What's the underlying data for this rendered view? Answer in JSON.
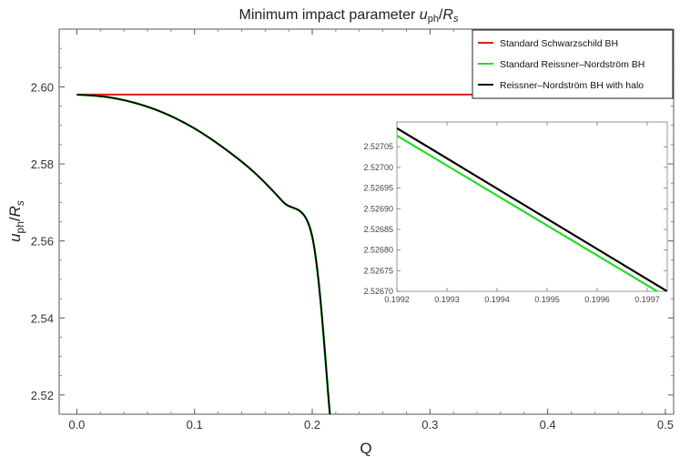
{
  "chart_data": [
    {
      "type": "line",
      "title_prefix": "Minimum impact parameter ",
      "title_math": {
        "main": "u",
        "sub": "ph",
        "slash": "/",
        "r": "R",
        "r_sub": "s"
      },
      "xlabel": "Q",
      "ylabel": {
        "main": "u",
        "sub": "ph",
        "slash": "/",
        "r": "R",
        "r_sub": "s"
      },
      "xlim": [
        -0.015,
        0.507
      ],
      "ylim": [
        2.515,
        2.615
      ],
      "x_ticks": [
        0.0,
        0.1,
        0.2,
        0.3,
        0.4,
        0.5
      ],
      "x_tick_labels": [
        "0.0",
        "0.1",
        "0.2",
        "0.3",
        "0.4",
        "0.5"
      ],
      "y_ticks": [
        2.52,
        2.54,
        2.56,
        2.58,
        2.6
      ],
      "y_tick_labels": [
        "2.52",
        "2.54",
        "2.56",
        "2.58",
        "2.60"
      ],
      "grid": false,
      "legend_position": "top-right",
      "series": [
        {
          "name": "Standard Schwarzschild BH",
          "color": "#e41a1c",
          "x": [
            0.0,
            0.5
          ],
          "y": [
            2.598,
            2.598
          ]
        },
        {
          "name": "Standard Reissner–Nordström BH",
          "color": "#22dd22",
          "x": [
            0.0,
            0.025,
            0.05,
            0.075,
            0.1,
            0.125,
            0.15,
            0.175,
            0.2,
            0.215
          ],
          "y": [
            2.598,
            2.5974,
            2.5958,
            2.5931,
            2.5892,
            2.5841,
            2.578,
            2.5702,
            2.5611,
            2.515
          ]
        },
        {
          "name": "Reissner–Nordström BH with halo",
          "color": "#000000",
          "x": [
            0.0,
            0.025,
            0.05,
            0.075,
            0.1,
            0.125,
            0.15,
            0.175,
            0.2,
            0.215
          ],
          "y": [
            2.598,
            2.5974,
            2.5958,
            2.5931,
            2.5892,
            2.5841,
            2.578,
            2.5702,
            2.5611,
            2.515
          ]
        }
      ]
    },
    {
      "type": "line",
      "xlim": [
        0.1992,
        0.19974
      ],
      "ylim": [
        2.5267,
        2.52711
      ],
      "x_ticks": [
        0.1992,
        0.1993,
        0.1994,
        0.1995,
        0.1996,
        0.1997
      ],
      "x_tick_labels": [
        "0.1992",
        "0.1993",
        "0.1994",
        "0.1995",
        "0.1996",
        "0.1997"
      ],
      "y_ticks": [
        2.5267,
        2.52675,
        2.5268,
        2.52685,
        2.5269,
        2.52695,
        2.527,
        2.52705
      ],
      "y_tick_labels": [
        "2.52670",
        "2.52675",
        "2.52680",
        "2.52685",
        "2.52690",
        "2.52695",
        "2.52700",
        "2.52705"
      ],
      "grid": false,
      "series": [
        {
          "color": "#22dd22",
          "x": [
            0.1992,
            0.19972
          ],
          "y": [
            2.527077,
            2.5267
          ]
        },
        {
          "color": "#000000",
          "x": [
            0.1992,
            0.19974
          ],
          "y": [
            2.527095,
            2.5267
          ]
        }
      ]
    }
  ]
}
